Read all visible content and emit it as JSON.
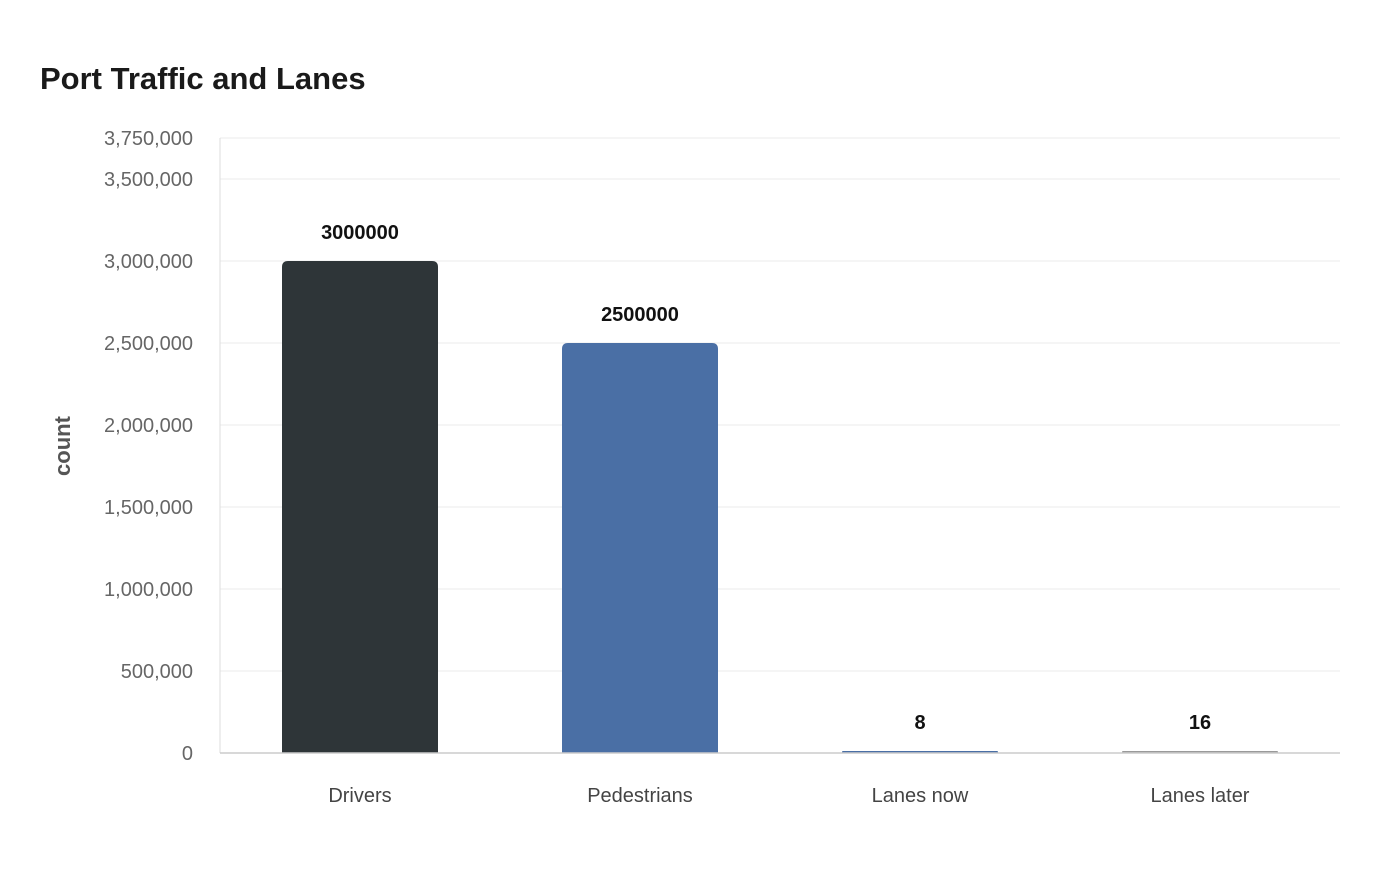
{
  "chart_data": {
    "type": "bar",
    "title": "Port Traffic and Lanes",
    "xlabel": "",
    "ylabel": "count",
    "categories": [
      "Drivers",
      "Pedestrians",
      "Lanes now",
      "Lanes later"
    ],
    "values": [
      3000000,
      2500000,
      8,
      16
    ],
    "data_labels": [
      "3000000",
      "2500000",
      "8",
      "16"
    ],
    "colors": [
      "#2e3538",
      "#4a6fa5",
      "#4a6fa5",
      "#9a9a9a"
    ],
    "ylim": [
      0,
      3750000
    ],
    "yticks": [
      0,
      500000,
      1000000,
      1500000,
      2000000,
      2500000,
      3000000,
      3500000,
      3750000
    ],
    "ytick_labels": [
      "0",
      "500,000",
      "1,000,000",
      "1,500,000",
      "2,000,000",
      "2,500,000",
      "3,000,000",
      "3,500,000",
      "3,750,000"
    ],
    "grid": true,
    "legend": "none"
  }
}
